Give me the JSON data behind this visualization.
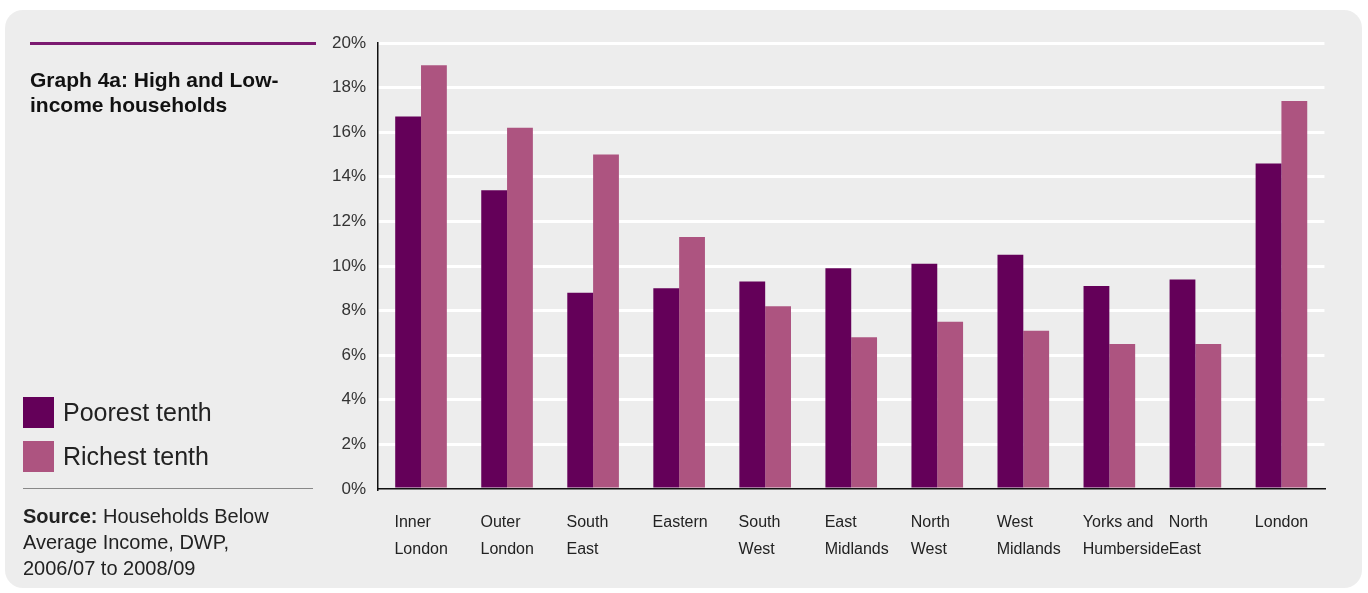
{
  "chart_data": {
    "type": "bar",
    "title": "Graph 4a: High and Low-income households",
    "categories": [
      "Inner London",
      "Outer London",
      "South East",
      "Eastern",
      "South West",
      "East Midlands",
      "North West",
      "West Midlands",
      "Yorks and Humberside",
      "North East",
      "London"
    ],
    "series": [
      {
        "name": "Poorest tenth",
        "color": "#640059",
        "values": [
          16.7,
          13.4,
          8.8,
          9.0,
          9.3,
          9.9,
          10.1,
          10.5,
          9.1,
          9.4,
          14.6
        ]
      },
      {
        "name": "Richest tenth",
        "color": "#ad5480",
        "values": [
          19.0,
          16.2,
          15.0,
          11.3,
          8.2,
          6.8,
          7.5,
          7.1,
          6.5,
          6.5,
          17.4
        ]
      }
    ],
    "ylim": [
      0,
      20
    ],
    "yticks": [
      {
        "value": 0,
        "label": "0%"
      },
      {
        "value": 2,
        "label": "2%"
      },
      {
        "value": 4,
        "label": "4%"
      },
      {
        "value": 6,
        "label": "6%"
      },
      {
        "value": 8,
        "label": "8%"
      },
      {
        "value": 10,
        "label": "10%"
      },
      {
        "value": 12,
        "label": "12%"
      },
      {
        "value": 14,
        "label": "14%"
      },
      {
        "value": 16,
        "label": "16%"
      },
      {
        "value": 18,
        "label": "18%"
      },
      {
        "value": 20,
        "label": "20%"
      }
    ],
    "grid": "y",
    "legend": "left",
    "annotations": [
      "Source: Households Below Average Income, DWP, 2006/07 to 2008/09"
    ]
  }
}
